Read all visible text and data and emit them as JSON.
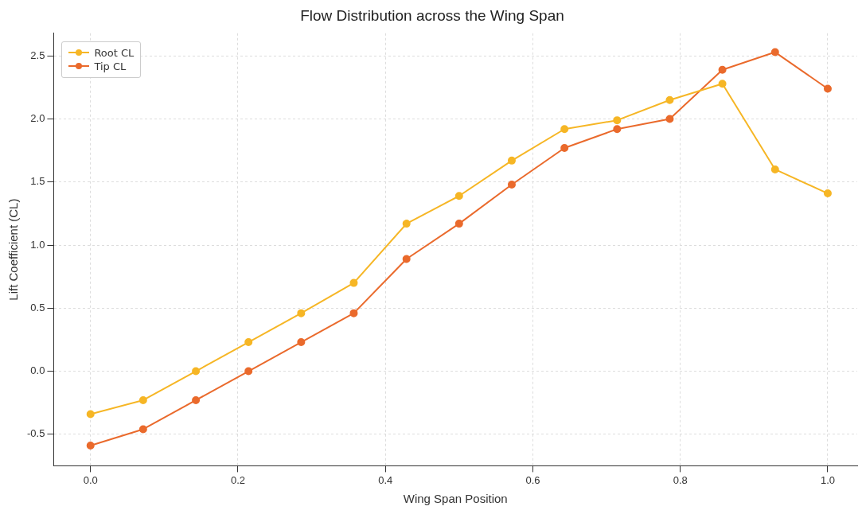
{
  "chart_data": {
    "type": "line",
    "title": "Flow Distribution across the Wing Span",
    "xlabel": "Wing Span Position",
    "ylabel": "Lift Coefficient (CL)",
    "x": [
      0,
      0.0714,
      0.1429,
      0.2143,
      0.2857,
      0.3571,
      0.4286,
      0.5,
      0.5714,
      0.6429,
      0.7143,
      0.7857,
      0.8571,
      0.9286,
      1.0
    ],
    "series": [
      {
        "name": "Root CL",
        "color": "#f6b625",
        "values": [
          -0.34,
          -0.23,
          0.0,
          0.23,
          0.46,
          0.7,
          1.17,
          1.39,
          1.67,
          1.92,
          1.99,
          2.15,
          2.28,
          1.6,
          1.41
        ]
      },
      {
        "name": "Tip CL",
        "color": "#ea6a2c",
        "values": [
          -0.59,
          -0.46,
          -0.23,
          0.0,
          0.23,
          0.46,
          0.89,
          1.17,
          1.48,
          1.77,
          1.92,
          2.0,
          2.39,
          2.53,
          2.24
        ]
      }
    ],
    "xlim": [
      -0.05,
      1.04
    ],
    "xticks": [
      {
        "value": 0,
        "label": "0.0"
      },
      0.2,
      0.4,
      0.6,
      0.8,
      {
        "value": 1,
        "label": "1.0"
      }
    ],
    "ylim": [
      -0.75,
      2.68
    ],
    "yticks": [
      -0.5,
      {
        "value": 0,
        "label": "0.0"
      },
      0.5,
      {
        "value": 1,
        "label": "1.0"
      },
      1.5,
      {
        "value": 2,
        "label": "2.0"
      },
      2.5
    ],
    "grid": true,
    "legend": "top left",
    "marker": "circle",
    "line_style": "solid"
  }
}
